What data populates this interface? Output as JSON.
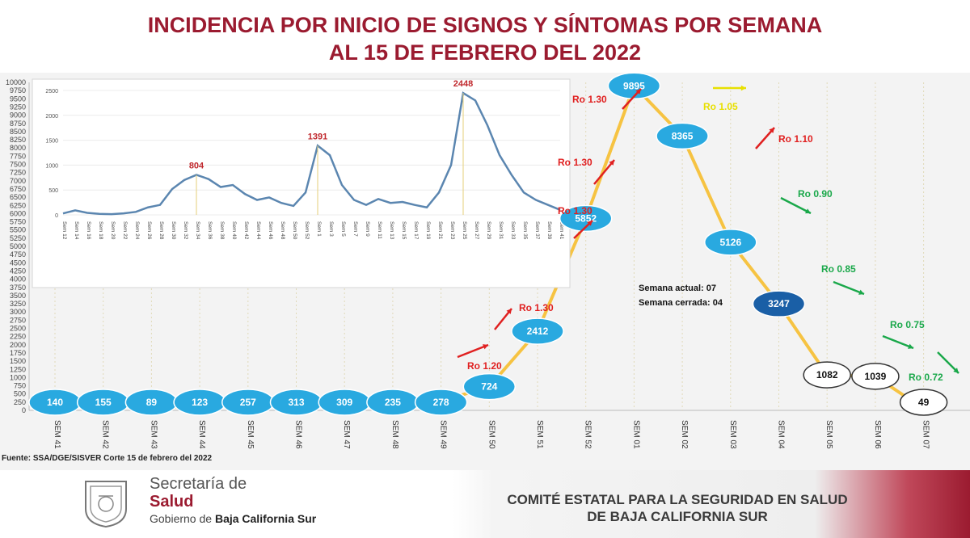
{
  "title_line1": "INCIDENCIA POR INICIO DE SIGNOS Y SÍNTOMAS POR SEMANA",
  "title_line2": "AL 15 DE FEBRERO DEL 2022",
  "source": "Fuente: SSA/DGE/SISVER Corte 15 de febrero del 2022",
  "footer": {
    "brand_line1": "Secretaría de",
    "brand_line2": "Salud",
    "brand_line3_pre": "Gobierno de ",
    "brand_line3_bold": "Baja California Sur",
    "committee_line1": "COMITÉ ESTATAL PARA LA SEGURIDAD EN SALUD",
    "committee_line2": "DE BAJA CALIFORNIA SUR"
  },
  "colors": {
    "title": "#9b1b30",
    "line": "#f6c342",
    "bubble": "#29a9e0",
    "bubble_dark": "#1a5fa6",
    "ro_up": "#e02020",
    "ro_down": "#1aa84a",
    "ro_flat": "#e8e000",
    "inset_line": "#5b86b0"
  },
  "chart_data": [
    {
      "type": "line",
      "title": "",
      "ylim": [
        0,
        10000
      ],
      "yticks": [
        "0",
        "250",
        "500",
        "750",
        "1000",
        "1250",
        "1500",
        "1750",
        "2000",
        "2250",
        "2500",
        "2750",
        "3000",
        "3250",
        "3500",
        "3750",
        "4000",
        "4250",
        "4500",
        "4750",
        "5000",
        "5250",
        "5500",
        "5750",
        "6000",
        "6250",
        "6500",
        "6750",
        "7000",
        "7250",
        "7500",
        "7750",
        "8000",
        "8250",
        "8500",
        "8750",
        "9000",
        "9250",
        "9500",
        "9750",
        "10000"
      ],
      "categories": [
        "SEM 41",
        "SEM 42",
        "SEM 43",
        "SEM 44",
        "SEM 45",
        "SEM 46",
        "SEM 47",
        "SEM 48",
        "SEM 49",
        "SEM 50",
        "SEM 51",
        "SEM 52",
        "SEM 01",
        "SEM 02",
        "SEM 03",
        "SEM 04",
        "SEM 05",
        "SEM 06",
        "SEM 07"
      ],
      "values": [
        140,
        155,
        89,
        123,
        257,
        313,
        309,
        235,
        278,
        724,
        2412,
        5852,
        9895,
        8365,
        5126,
        3247,
        1082,
        1039,
        49
      ],
      "labels": [
        "140",
        "155",
        "89",
        "123",
        "257",
        "313",
        "309",
        "235",
        "278",
        "724",
        "2412",
        "5852",
        "9895",
        "8365",
        "5126",
        "3247",
        "1082",
        "1039",
        "49"
      ],
      "ro_annotations": [
        {
          "text": "Ro 1.20",
          "trend": "up",
          "after": "SEM 49"
        },
        {
          "text": "Ro 1.30",
          "trend": "up",
          "after": "SEM 50"
        },
        {
          "text": "Ro 1.30",
          "trend": "up",
          "after": "SEM 51"
        },
        {
          "text": "Ro 1.30",
          "trend": "up",
          "after": "SEM 52"
        },
        {
          "text": "Ro 1.30",
          "trend": "up",
          "after": "SEM 52"
        },
        {
          "text": "Ro 1.05",
          "trend": "flat",
          "after": "SEM 02"
        },
        {
          "text": "Ro 1.10",
          "trend": "up",
          "after": "SEM 03"
        },
        {
          "text": "Ro 0.90",
          "trend": "down",
          "after": "SEM 04"
        },
        {
          "text": "Ro 0.85",
          "trend": "down",
          "after": "SEM 05"
        },
        {
          "text": "Ro 0.75",
          "trend": "down",
          "after": "SEM 06"
        },
        {
          "text": "Ro 0.72",
          "trend": "down",
          "after": "SEM 07"
        }
      ],
      "note_line1": "Semana actual: 07",
      "note_line2": "Semana cerrada: 04"
    },
    {
      "type": "line",
      "title": "",
      "ylim": [
        0,
        2500
      ],
      "yticks": [
        "0",
        "500",
        "1000",
        "1500",
        "2000",
        "2500"
      ],
      "categories": [
        "Sem 12",
        "Sem 14",
        "Sem 16",
        "Sem 18",
        "Sem 20",
        "Sem 22",
        "Sem 24",
        "Sem 26",
        "Sem 28",
        "Sem 30",
        "Sem 32",
        "Sem 34",
        "Sem 36",
        "Sem 38",
        "Sem 40",
        "Sem 42",
        "Sem 44",
        "Sem 46",
        "Sem 48",
        "Sem 50",
        "Sem 52",
        "Sem 1",
        "Sem 3",
        "Sem 5",
        "Sem 7",
        "Sem 9",
        "Sem 11",
        "Sem 13",
        "Sem 15",
        "Sem 17",
        "Sem 19",
        "Sem 21",
        "Sem 23",
        "Sem 25",
        "Sem 27",
        "Sem 29",
        "Sem 31",
        "Sem 33",
        "Sem 35",
        "Sem 37",
        "Sem 39",
        "Sem 41"
      ],
      "values": [
        30,
        90,
        40,
        20,
        15,
        30,
        60,
        150,
        200,
        520,
        700,
        804,
        720,
        560,
        600,
        420,
        300,
        350,
        240,
        180,
        450,
        1391,
        1200,
        600,
        300,
        200,
        320,
        240,
        260,
        200,
        150,
        450,
        1000,
        2448,
        2300,
        1800,
        1200,
        800,
        450,
        300,
        200,
        100
      ],
      "peaks": [
        {
          "label": "804",
          "index": 11
        },
        {
          "label": "1391",
          "index": 21
        },
        {
          "label": "2448",
          "index": 33
        }
      ]
    }
  ]
}
